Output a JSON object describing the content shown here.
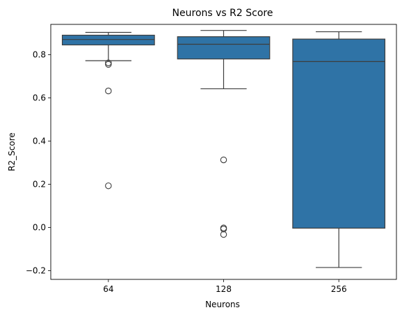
{
  "chart_data": {
    "type": "box",
    "title": "Neurons vs R2 Score",
    "xlabel": "Neurons",
    "ylabel": "R2_Score",
    "categories": [
      "64",
      "128",
      "256"
    ],
    "ylim": [
      -0.24,
      0.94
    ],
    "yticks": [
      -0.2,
      0.0,
      0.2,
      0.4,
      0.6,
      0.8
    ],
    "ytick_labels": [
      "−0.2",
      "0.0",
      "0.2",
      "0.4",
      "0.6",
      "0.8"
    ],
    "box_color": "#2f73a6",
    "boxes": [
      {
        "category": "64",
        "whisker_low": 0.772,
        "q1": 0.845,
        "median": 0.87,
        "q3": 0.89,
        "whisker_high": 0.903,
        "outliers": [
          0.762,
          0.755,
          0.632,
          0.193
        ]
      },
      {
        "category": "128",
        "whisker_low": 0.642,
        "q1": 0.78,
        "median": 0.848,
        "q3": 0.883,
        "whisker_high": 0.912,
        "outliers": [
          0.313,
          -0.002,
          -0.007,
          -0.032
        ]
      },
      {
        "category": "256",
        "whisker_low": -0.185,
        "q1": -0.003,
        "median": 0.768,
        "q3": 0.872,
        "whisker_high": 0.906,
        "outliers": []
      }
    ]
  }
}
